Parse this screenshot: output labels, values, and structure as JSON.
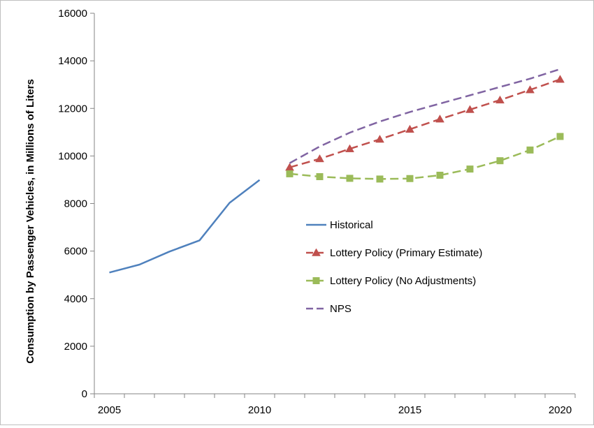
{
  "chart_data": {
    "type": "line",
    "title": "",
    "xlabel": "",
    "ylabel": "Consumption  by Passenger Vehicles, in Millions of Liters",
    "xlim": [
      2004.5,
      2020.5
    ],
    "ylim": [
      0,
      16000
    ],
    "x_ticks": [
      2005,
      2010,
      2015,
      2020
    ],
    "y_ticks": [
      0,
      2000,
      4000,
      6000,
      8000,
      10000,
      12000,
      14000,
      16000
    ],
    "grid": false,
    "legend_position": "center",
    "series": [
      {
        "name": "Historical",
        "color": "#4f81bd",
        "style": "solid",
        "marker": "none",
        "x": [
          2005,
          2006,
          2007,
          2008,
          2009,
          2010
        ],
        "values": [
          5100,
          5430,
          5980,
          6450,
          8030,
          8990
        ]
      },
      {
        "name": "Lottery Policy (Primary Estimate)",
        "color": "#c0504d",
        "style": "dashed",
        "marker": "triangle",
        "x": [
          2011,
          2012,
          2013,
          2014,
          2015,
          2016,
          2017,
          2018,
          2019,
          2020
        ],
        "values": [
          9520,
          9880,
          10300,
          10700,
          11120,
          11550,
          11950,
          12350,
          12780,
          13220
        ]
      },
      {
        "name": "Lottery Policy (No Adjustments)",
        "color": "#9bbb59",
        "style": "dashed",
        "marker": "square",
        "x": [
          2011,
          2012,
          2013,
          2014,
          2015,
          2016,
          2017,
          2018,
          2019,
          2020
        ],
        "values": [
          9250,
          9130,
          9060,
          9030,
          9050,
          9190,
          9450,
          9800,
          10250,
          10820
        ]
      },
      {
        "name": "NPS",
        "color": "#8064a2",
        "style": "dashed",
        "marker": "none",
        "x": [
          2011,
          2012,
          2013,
          2014,
          2015,
          2016,
          2017,
          2018,
          2019,
          2020
        ],
        "values": [
          9700,
          10400,
          10980,
          11450,
          11850,
          12200,
          12550,
          12900,
          13250,
          13650
        ]
      }
    ]
  }
}
